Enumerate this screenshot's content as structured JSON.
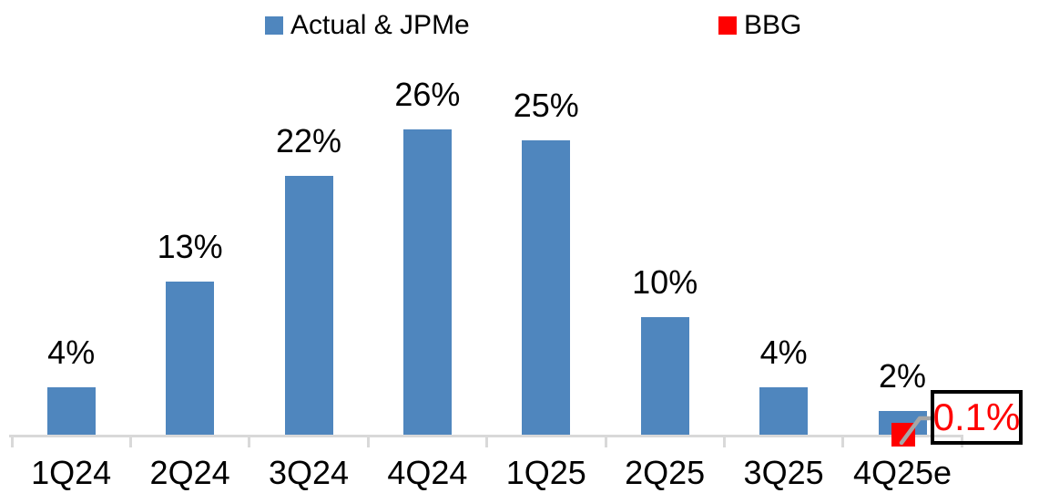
{
  "legend": {
    "items": [
      {
        "label": "Actual & JPMe",
        "color": "#4F86BE",
        "marker": "square"
      },
      {
        "label": "BBG",
        "color": "#FF0000",
        "marker": "square"
      }
    ]
  },
  "chart_data": {
    "type": "bar",
    "title": "",
    "xlabel": "",
    "ylabel": "",
    "unit": "percent",
    "categories": [
      "1Q24",
      "2Q24",
      "3Q24",
      "4Q24",
      "1Q25",
      "2Q25",
      "3Q25",
      "4Q25e"
    ],
    "series": [
      {
        "name": "Actual & JPMe",
        "type": "bar",
        "color": "#4F86BE",
        "values": [
          4,
          13,
          22,
          26,
          25,
          10,
          4,
          2
        ],
        "data_labels": [
          "4%",
          "13%",
          "22%",
          "26%",
          "25%",
          "10%",
          "4%",
          "2%"
        ]
      },
      {
        "name": "BBG",
        "type": "point",
        "color": "#FF0000",
        "values": [
          null,
          null,
          null,
          null,
          null,
          null,
          null,
          0.1
        ],
        "data_labels": [
          null,
          null,
          null,
          null,
          null,
          null,
          null,
          "0.1%"
        ]
      }
    ],
    "ylim": [
      0,
      30
    ],
    "grid": false,
    "legend_position": "top",
    "annotation": {
      "text": "0.1%",
      "applies_to_category": "4Q25e",
      "applies_to_series": "BBG",
      "style": "boxed-callout",
      "text_color": "#FF0000",
      "border_color": "#000000",
      "leader_color": "#A6A6A6"
    }
  },
  "colors": {
    "bar_blue": "#4F86BE",
    "bbg_red": "#FF0000",
    "axis_gray": "#D9D9D9",
    "leader_gray": "#A6A6A6",
    "text_black": "#000000"
  }
}
